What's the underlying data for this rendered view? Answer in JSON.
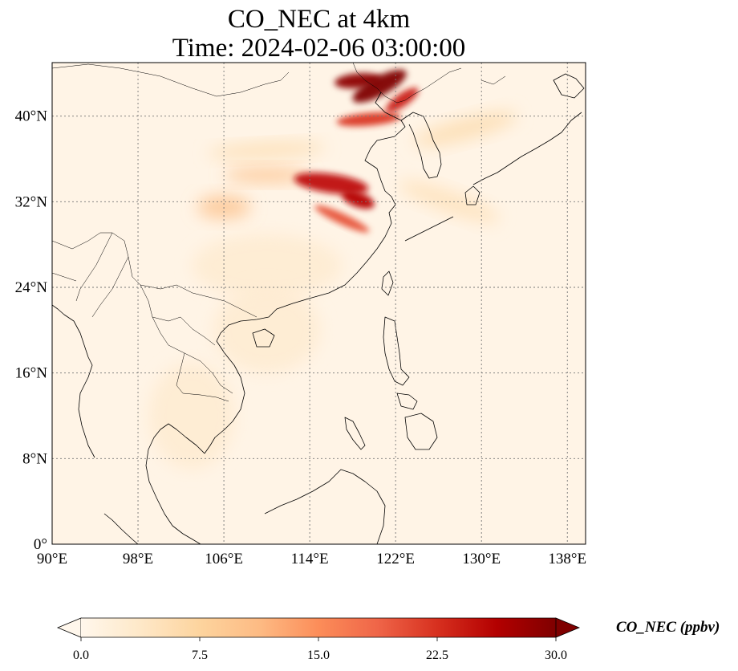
{
  "map": {
    "title_line1": "CO_NEC at 4km",
    "title_line2": "Time: 2024-02-06 03:00:00",
    "extent": {
      "lon_min": 90,
      "lon_max": 139.7,
      "lat_min": 0,
      "lat_max": 45
    },
    "lon_ticks": [
      {
        "value": 90,
        "label": "90°E"
      },
      {
        "value": 98,
        "label": "98°E"
      },
      {
        "value": 106,
        "label": "106°E"
      },
      {
        "value": 114,
        "label": "114°E"
      },
      {
        "value": 122,
        "label": "122°E"
      },
      {
        "value": 130,
        "label": "130°E"
      },
      {
        "value": 138,
        "label": "138°E"
      }
    ],
    "lat_ticks": [
      {
        "value": 0,
        "label": "0°"
      },
      {
        "value": 8,
        "label": "8°N"
      },
      {
        "value": 16,
        "label": "16°N"
      },
      {
        "value": 24,
        "label": "24°N"
      },
      {
        "value": 32,
        "label": "32°N"
      },
      {
        "value": 40,
        "label": "40°N"
      }
    ],
    "gridlines": true,
    "plumes": [
      {
        "lon": 120.5,
        "lat": 42.8,
        "rx": 2.8,
        "ry": 0.9,
        "angle": -28,
        "value": 30
      },
      {
        "lon": 118.5,
        "lat": 43.3,
        "rx": 2.2,
        "ry": 0.7,
        "angle": -5,
        "value": 29
      },
      {
        "lon": 122.6,
        "lat": 41.5,
        "rx": 1.8,
        "ry": 0.6,
        "angle": -35,
        "value": 24
      },
      {
        "lon": 119.5,
        "lat": 39.7,
        "rx": 3.0,
        "ry": 0.6,
        "angle": -5,
        "value": 22
      },
      {
        "lon": 116.0,
        "lat": 33.7,
        "rx": 3.5,
        "ry": 0.9,
        "angle": 8,
        "value": 25
      },
      {
        "lon": 118.5,
        "lat": 32.2,
        "rx": 1.6,
        "ry": 0.7,
        "angle": 20,
        "value": 26
      },
      {
        "lon": 117.0,
        "lat": 30.4,
        "rx": 2.8,
        "ry": 0.5,
        "angle": 25,
        "value": 20
      },
      {
        "lon": 110.0,
        "lat": 34.5,
        "rx": 4.0,
        "ry": 0.7,
        "angle": 0,
        "value": 10
      },
      {
        "lon": 106.0,
        "lat": 31.5,
        "rx": 2.5,
        "ry": 1.1,
        "angle": 0,
        "value": 10
      },
      {
        "lon": 110.0,
        "lat": 36.8,
        "rx": 5.5,
        "ry": 0.7,
        "angle": -3,
        "value": 6
      },
      {
        "lon": 128.5,
        "lat": 38.8,
        "rx": 5.0,
        "ry": 1.0,
        "angle": -15,
        "value": 6
      },
      {
        "lon": 127.0,
        "lat": 32.0,
        "rx": 5.0,
        "ry": 1.0,
        "angle": 20,
        "value": 5
      },
      {
        "lon": 110.0,
        "lat": 26.0,
        "rx": 7.0,
        "ry": 3.0,
        "angle": 0,
        "value": 3
      },
      {
        "lon": 110.0,
        "lat": 20.0,
        "rx": 5.0,
        "ry": 4.0,
        "angle": 0,
        "value": 3
      },
      {
        "lon": 103.0,
        "lat": 12.0,
        "rx": 4.0,
        "ry": 5.0,
        "angle": 0,
        "value": 3
      }
    ]
  },
  "colorbar": {
    "label": "CO_NEC (ppbv)",
    "min": 0,
    "max": 30,
    "extend": "both",
    "colormap": [
      "#fff7ec",
      "#fee8c8",
      "#fdd49e",
      "#fdbb84",
      "#fc8d59",
      "#ef6548",
      "#d7301f",
      "#b30000",
      "#7f0000"
    ],
    "ticks": [
      {
        "value": 0,
        "label": "0.0"
      },
      {
        "value": 7.5,
        "label": "7.5"
      },
      {
        "value": 15,
        "label": "15.0"
      },
      {
        "value": 22.5,
        "label": "22.5"
      },
      {
        "value": 30,
        "label": "30.0"
      }
    ]
  }
}
